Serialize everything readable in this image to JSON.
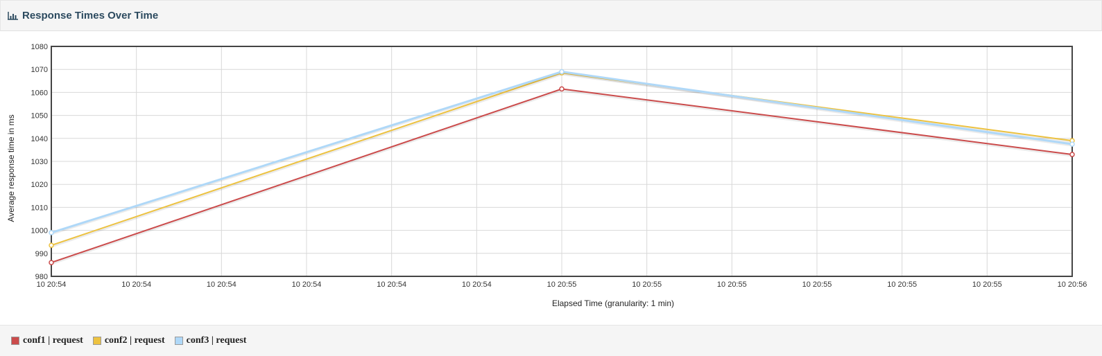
{
  "panel": {
    "title": "Response Times Over Time",
    "icon": "bar-chart-icon"
  },
  "chart_data": {
    "type": "line",
    "title": "",
    "xlabel": "Elapsed Time (granularity: 1 min)",
    "ylabel": "Average response time in ms",
    "ylim": [
      980,
      1080
    ],
    "yticks": [
      980,
      990,
      1000,
      1010,
      1020,
      1030,
      1040,
      1050,
      1060,
      1070,
      1080
    ],
    "xtick_labels": [
      "10 20:54",
      "10 20:54",
      "10 20:54",
      "10 20:54",
      "10 20:54",
      "10 20:54",
      "10 20:55",
      "10 20:55",
      "10 20:55",
      "10 20:55",
      "10 20:55",
      "10 20:55",
      "10 20:56"
    ],
    "x_index": [
      0,
      6,
      12
    ],
    "grid": true,
    "legend_position": "bottom",
    "series": [
      {
        "name": "conf1 | request",
        "color": "#cb4b4b",
        "values": [
          986,
          1061.5,
          1033
        ]
      },
      {
        "name": "conf2 | request",
        "color": "#edc240",
        "values": [
          993.5,
          1068.5,
          1039
        ]
      },
      {
        "name": "conf3 | request",
        "color": "#afd8f8",
        "values": [
          999,
          1069,
          1037.5
        ]
      }
    ]
  },
  "legend": {
    "items": [
      {
        "label": "conf1 | request",
        "color": "#cb4b4b"
      },
      {
        "label": "conf2 | request",
        "color": "#edc240"
      },
      {
        "label": "conf3 | request",
        "color": "#afd8f8"
      }
    ]
  }
}
